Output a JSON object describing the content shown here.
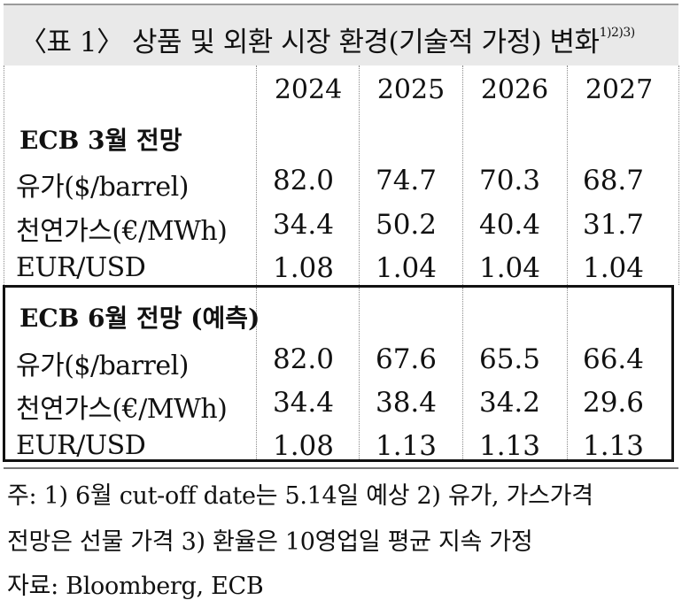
{
  "title": {
    "text": "〈표 1〉 상품 및 외환 시장 환경(기술적 가정) 변화",
    "sup": "1)2)3)"
  },
  "years": [
    "2024",
    "2025",
    "2026",
    "2027"
  ],
  "sections": [
    {
      "heading": "ECB 3월 전망",
      "rows": [
        {
          "label": "유가($/barrel)",
          "values": [
            "82.0",
            "74.7",
            "70.3",
            "68.7"
          ]
        },
        {
          "label": "천연가스(€/MWh)",
          "values": [
            "34.4",
            "50.2",
            "40.4",
            "31.7"
          ]
        },
        {
          "label": "EUR/USD",
          "values": [
            "1.08",
            "1.04",
            "1.04",
            "1.04"
          ]
        }
      ]
    },
    {
      "heading": "ECB 6월 전망 (예측)",
      "rows": [
        {
          "label": "유가($/barrel)",
          "values": [
            "82.0",
            "67.6",
            "65.5",
            "66.4"
          ]
        },
        {
          "label": "천연가스(€/MWh)",
          "values": [
            "34.4",
            "38.4",
            "34.2",
            "29.6"
          ]
        },
        {
          "label": "EUR/USD",
          "values": [
            "1.08",
            "1.13",
            "1.13",
            "1.13"
          ]
        }
      ]
    }
  ],
  "notes": [
    "주: 1) 6월 cut-off date는 5.14일 예상   2) 유가, 가스가격",
    "전망은 선물 가격   3) 환율은 10영업일 평균 지속 가정",
    "자료: Bloomberg, ECB"
  ]
}
